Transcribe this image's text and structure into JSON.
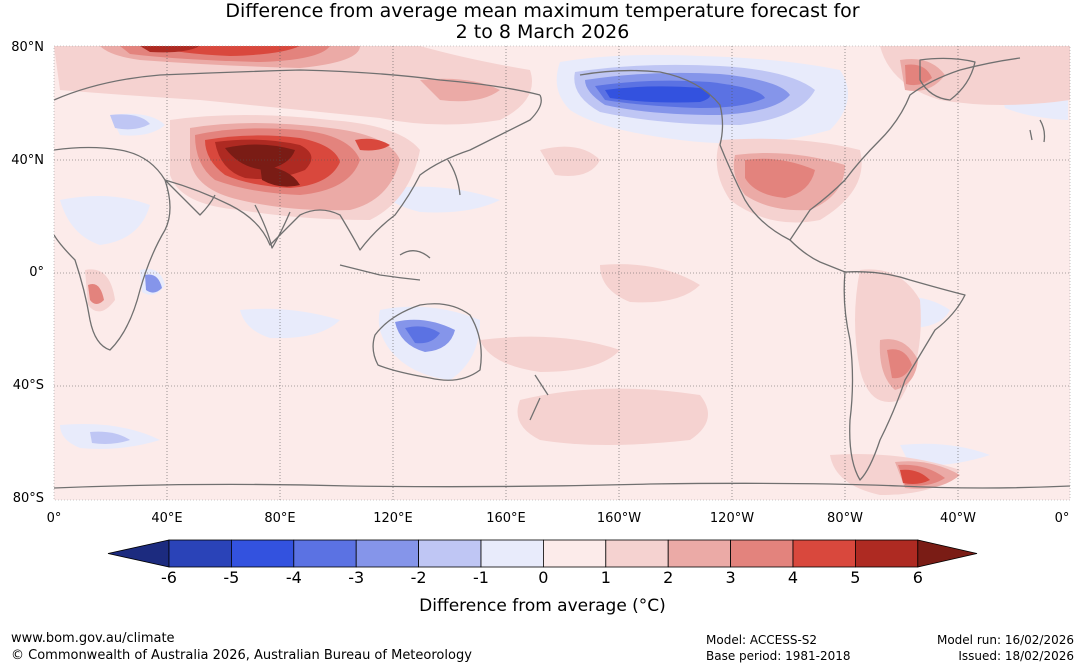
{
  "title": {
    "line1": "Difference from average mean maximum temperature forecast for",
    "line2": "2 to 8 March 2026"
  },
  "map": {
    "lat_labels": [
      "80°N",
      "40°N",
      "0°",
      "40°S",
      "80°S"
    ],
    "lon_labels": [
      "0°",
      "40°E",
      "80°E",
      "120°E",
      "160°E",
      "160°W",
      "120°W",
      "80°W",
      "40°W",
      "0°"
    ]
  },
  "colorbar": {
    "title": "Difference from average (°C)",
    "tick_labels": [
      "-6",
      "-5",
      "-4",
      "-3",
      "-2",
      "-1",
      "0",
      "1",
      "2",
      "3",
      "4",
      "5",
      "6"
    ],
    "colors": [
      "#1c2b7f",
      "#2a43b8",
      "#3352df",
      "#5b72e3",
      "#8595ea",
      "#bfc6f4",
      "#e8ebfb",
      "#fcebea",
      "#f5d2d0",
      "#ebaaa6",
      "#e3837d",
      "#d9483d",
      "#ae2a22",
      "#7a1c15"
    ]
  },
  "legend_chart": {
    "type": "colorbar",
    "bins": [
      {
        "range": [
          null,
          -6
        ],
        "color": "#1c2b7f"
      },
      {
        "range": [
          -6,
          -5
        ],
        "color": "#2a43b8"
      },
      {
        "range": [
          -5,
          -4
        ],
        "color": "#3352df"
      },
      {
        "range": [
          -4,
          -3
        ],
        "color": "#5b72e3"
      },
      {
        "range": [
          -3,
          -2
        ],
        "color": "#8595ea"
      },
      {
        "range": [
          -2,
          -1
        ],
        "color": "#bfc6f4"
      },
      {
        "range": [
          -1,
          0
        ],
        "color": "#e8ebfb"
      },
      {
        "range": [
          0,
          1
        ],
        "color": "#fcebea"
      },
      {
        "range": [
          1,
          2
        ],
        "color": "#f5d2d0"
      },
      {
        "range": [
          2,
          3
        ],
        "color": "#ebaaa6"
      },
      {
        "range": [
          3,
          4
        ],
        "color": "#e3837d"
      },
      {
        "range": [
          4,
          5
        ],
        "color": "#d9483d"
      },
      {
        "range": [
          5,
          6
        ],
        "color": "#ae2a22"
      },
      {
        "range": [
          6,
          null
        ],
        "color": "#7a1c15"
      }
    ]
  },
  "footer": {
    "website": "www.bom.gov.au/climate",
    "copyright": "© Commonwealth of Australia 2026, Australian Bureau of Meteorology",
    "model": "Model: ACCESS-S2",
    "base_period": "Base period: 1981-2018",
    "model_run": "Model run: 16/02/2026",
    "issued": "Issued: 18/02/2026"
  }
}
